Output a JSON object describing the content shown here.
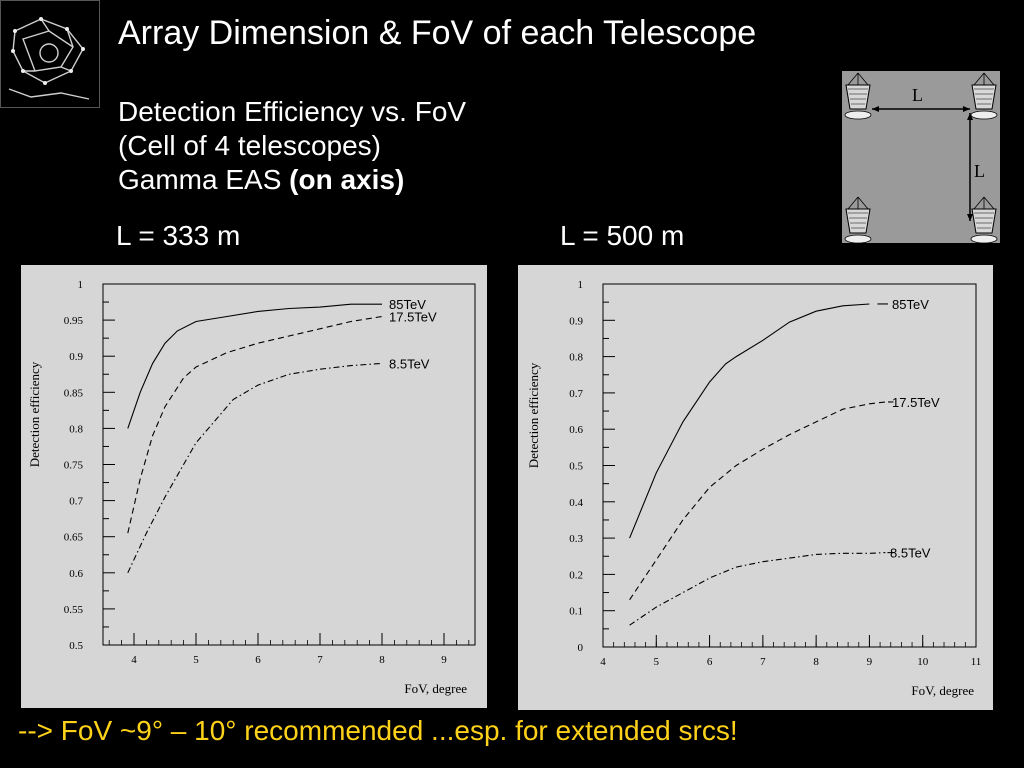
{
  "title": "Array Dimension & FoV of each Telescope",
  "subtitle": {
    "line1": "Detection Efficiency  vs. FoV",
    "line2": "(Cell of 4 telescopes)",
    "line3_prefix": "Gamma EAS ",
    "line3_bold": "(on axis)"
  },
  "panel_labels": {
    "left": "L = 333 m",
    "right": "L = 500 m"
  },
  "inset": {
    "label_top": "L",
    "label_right": "L"
  },
  "footer": "--> FoV  ~9° – 10° recommended ...esp. for extended srcs!",
  "colors": {
    "background": "#000000",
    "footer": "#ffd21a",
    "panel": "#d6d6d6",
    "inset": "#9a9a9a"
  },
  "chart_data": [
    {
      "type": "line",
      "title": "L = 333 m",
      "xlabel": "FoV, degree",
      "ylabel": "Detection efficiency",
      "xlim": [
        3.5,
        9.5
      ],
      "ylim": [
        0.5,
        1.0
      ],
      "xticks": [
        4,
        5,
        6,
        7,
        8,
        9
      ],
      "yticks": [
        0.5,
        0.55,
        0.6,
        0.65,
        0.7,
        0.75,
        0.8,
        0.85,
        0.9,
        0.95,
        1
      ],
      "ytick_labels": [
        "0.5",
        "0.55",
        "0.6",
        "0.65",
        "0.7",
        "0.75",
        "0.8",
        "0.85",
        "0.9",
        "0.95",
        "1"
      ],
      "series": [
        {
          "name": "85TeV",
          "style": "solid",
          "x": [
            3.9,
            4.1,
            4.3,
            4.5,
            4.7,
            5.0,
            5.5,
            6.0,
            6.5,
            7.0,
            7.5,
            8.0
          ],
          "y": [
            0.8,
            0.85,
            0.89,
            0.918,
            0.935,
            0.948,
            0.955,
            0.962,
            0.966,
            0.968,
            0.972,
            0.972
          ]
        },
        {
          "name": "17.5TeV",
          "style": "dashed",
          "x": [
            3.9,
            4.1,
            4.3,
            4.5,
            4.8,
            5.0,
            5.5,
            6.0,
            6.5,
            7.0,
            7.5,
            8.0
          ],
          "y": [
            0.655,
            0.73,
            0.79,
            0.83,
            0.87,
            0.885,
            0.905,
            0.918,
            0.928,
            0.938,
            0.948,
            0.955
          ]
        },
        {
          "name": "8.5TeV",
          "style": "dashdot",
          "x": [
            3.9,
            4.2,
            4.5,
            4.8,
            5.0,
            5.3,
            5.6,
            6.0,
            6.5,
            7.0,
            7.5,
            8.0
          ],
          "y": [
            0.6,
            0.655,
            0.705,
            0.75,
            0.78,
            0.81,
            0.84,
            0.86,
            0.875,
            0.882,
            0.887,
            0.89
          ]
        }
      ]
    },
    {
      "type": "line",
      "title": "L = 500 m",
      "xlabel": "FoV, degree",
      "ylabel": "Detection efficiency",
      "xlim": [
        4,
        11
      ],
      "ylim": [
        0,
        1.0
      ],
      "xticks": [
        4,
        5,
        6,
        7,
        8,
        9,
        10,
        11
      ],
      "yticks": [
        0,
        0.1,
        0.2,
        0.3,
        0.4,
        0.5,
        0.6,
        0.7,
        0.8,
        0.9,
        1
      ],
      "ytick_labels": [
        "0",
        "0.1",
        "0.2",
        "0.3",
        "0.4",
        "0.5",
        "0.6",
        "0.7",
        "0.8",
        "0.9",
        "1"
      ],
      "series": [
        {
          "name": "85TeV",
          "style": "solid",
          "x": [
            4.5,
            5.0,
            5.5,
            6.0,
            6.3,
            6.5,
            7.0,
            7.5,
            8.0,
            8.5,
            9.0
          ],
          "y": [
            0.3,
            0.48,
            0.62,
            0.73,
            0.78,
            0.8,
            0.845,
            0.895,
            0.925,
            0.94,
            0.945
          ]
        },
        {
          "name": "17.5TeV",
          "style": "dashed",
          "x": [
            4.5,
            5.0,
            5.5,
            6.0,
            6.5,
            7.0,
            7.5,
            8.0,
            8.5,
            9.0,
            9.3
          ],
          "y": [
            0.13,
            0.24,
            0.35,
            0.44,
            0.5,
            0.545,
            0.585,
            0.62,
            0.655,
            0.67,
            0.675
          ]
        },
        {
          "name": "8.5TeV",
          "style": "dashdot",
          "x": [
            4.5,
            5.0,
            5.5,
            6.0,
            6.5,
            7.0,
            7.5,
            8.0,
            8.5,
            9.0,
            9.3
          ],
          "y": [
            0.06,
            0.11,
            0.15,
            0.19,
            0.22,
            0.235,
            0.245,
            0.255,
            0.258,
            0.258,
            0.26
          ]
        }
      ]
    }
  ]
}
